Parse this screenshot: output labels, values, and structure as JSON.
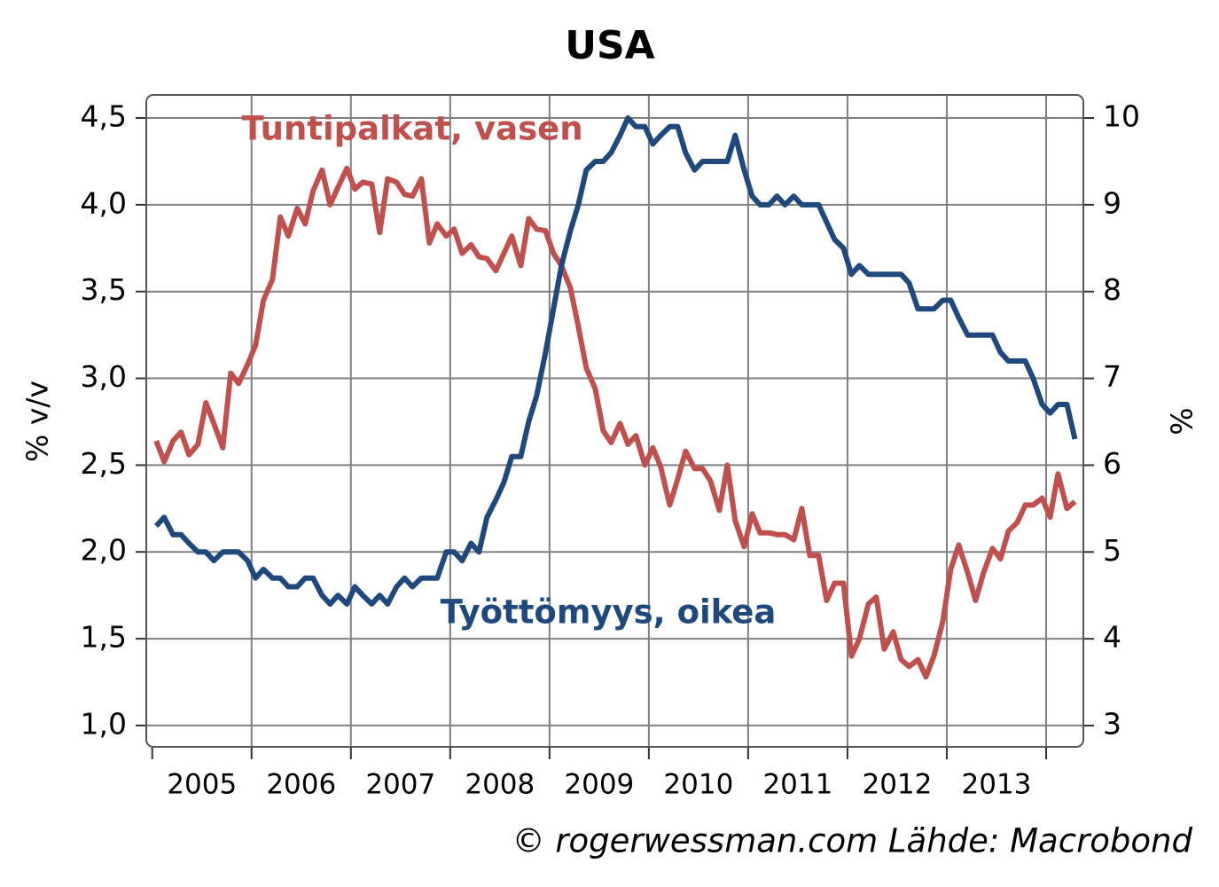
{
  "chart_data": {
    "type": "line",
    "title": "USA",
    "ylabel": "% v/v",
    "y2label": "%",
    "source": "© rogerwessman.com Lähde: Macrobond",
    "xlim": [
      2004.94,
      2014.375
    ],
    "xticks": [
      2005,
      2006,
      2007,
      2008,
      2009,
      2010,
      2011,
      2012,
      2013,
      2014
    ],
    "year_labels": [
      "2005",
      "2006",
      "2007",
      "2008",
      "2009",
      "2010",
      "2011",
      "2012",
      "2013"
    ],
    "ylim": [
      0.877,
      4.633
    ],
    "yticks": [
      {
        "value": 1.0,
        "label": "1,0"
      },
      {
        "value": 1.5,
        "label": "1,5"
      },
      {
        "value": 2.0,
        "label": "2,0"
      },
      {
        "value": 2.5,
        "label": "2,5"
      },
      {
        "value": 3.0,
        "label": "3,0"
      },
      {
        "value": 3.5,
        "label": "3,5"
      },
      {
        "value": 4.0,
        "label": "4,0"
      },
      {
        "value": 4.5,
        "label": "4,5"
      }
    ],
    "y2lim": [
      2.755,
      10.266
    ],
    "y2ticks": [
      3,
      4,
      5,
      6,
      7,
      8,
      9,
      10
    ],
    "grid": true,
    "x": [
      2005.04,
      2005.12,
      2005.21,
      2005.29,
      2005.37,
      2005.46,
      2005.54,
      2005.62,
      2005.71,
      2005.79,
      2005.87,
      2005.96,
      2006.04,
      2006.12,
      2006.21,
      2006.29,
      2006.37,
      2006.46,
      2006.54,
      2006.62,
      2006.71,
      2006.79,
      2006.87,
      2006.96,
      2007.04,
      2007.12,
      2007.21,
      2007.29,
      2007.37,
      2007.46,
      2007.54,
      2007.62,
      2007.71,
      2007.79,
      2007.87,
      2007.96,
      2008.04,
      2008.12,
      2008.21,
      2008.29,
      2008.37,
      2008.46,
      2008.54,
      2008.62,
      2008.71,
      2008.79,
      2008.87,
      2008.96,
      2009.04,
      2009.12,
      2009.21,
      2009.29,
      2009.37,
      2009.46,
      2009.54,
      2009.62,
      2009.71,
      2009.79,
      2009.87,
      2009.96,
      2010.04,
      2010.12,
      2010.21,
      2010.29,
      2010.37,
      2010.46,
      2010.54,
      2010.62,
      2010.71,
      2010.79,
      2010.87,
      2010.96,
      2011.04,
      2011.12,
      2011.21,
      2011.29,
      2011.37,
      2011.46,
      2011.54,
      2011.62,
      2011.71,
      2011.79,
      2011.87,
      2011.96,
      2012.04,
      2012.12,
      2012.21,
      2012.29,
      2012.37,
      2012.46,
      2012.54,
      2012.62,
      2012.71,
      2012.79,
      2012.87,
      2012.96,
      2013.04,
      2013.12,
      2013.21,
      2013.29,
      2013.37,
      2013.46,
      2013.54,
      2013.62,
      2013.71,
      2013.79,
      2013.87,
      2013.96,
      2014.04,
      2014.12,
      2014.21,
      2014.29
    ],
    "series": [
      {
        "name": "Tuntipalkat, vasen",
        "color": "#c0504d",
        "values": [
          2.64,
          2.52,
          2.64,
          2.69,
          2.56,
          2.62,
          2.86,
          2.74,
          2.6,
          3.03,
          2.97,
          3.08,
          3.19,
          3.45,
          3.57,
          3.93,
          3.82,
          3.98,
          3.89,
          4.08,
          4.2,
          4.0,
          4.1,
          4.21,
          4.09,
          4.13,
          4.12,
          3.84,
          4.15,
          4.13,
          4.06,
          4.05,
          4.15,
          3.78,
          3.89,
          3.82,
          3.86,
          3.72,
          3.77,
          3.7,
          3.69,
          3.62,
          3.72,
          3.82,
          3.65,
          3.92,
          3.86,
          3.85,
          3.72,
          3.65,
          3.52,
          3.3,
          3.06,
          2.94,
          2.7,
          2.63,
          2.74,
          2.62,
          2.67,
          2.5,
          2.6,
          2.49,
          2.27,
          2.42,
          2.58,
          2.48,
          2.48,
          2.41,
          2.24,
          2.5,
          2.18,
          2.03,
          2.22,
          2.11,
          2.11,
          2.1,
          2.1,
          2.07,
          2.25,
          1.98,
          1.98,
          1.72,
          1.82,
          1.82,
          1.4,
          1.5,
          1.7,
          1.74,
          1.44,
          1.54,
          1.38,
          1.34,
          1.38,
          1.28,
          1.4,
          1.6,
          1.9,
          2.04,
          1.88,
          1.72,
          1.88,
          2.02,
          1.96,
          2.12,
          2.17,
          2.27,
          2.27,
          2.31,
          2.2,
          2.45,
          2.25,
          2.29
        ]
      },
      {
        "name": "Työttömyys, oikea",
        "color": "#1f497d",
        "axis": "y2",
        "values": [
          5.3,
          5.4,
          5.2,
          5.2,
          5.1,
          5.0,
          5.0,
          4.9,
          5.0,
          5.0,
          5.0,
          4.9,
          4.7,
          4.8,
          4.7,
          4.7,
          4.6,
          4.6,
          4.7,
          4.7,
          4.5,
          4.4,
          4.5,
          4.4,
          4.6,
          4.5,
          4.4,
          4.5,
          4.4,
          4.6,
          4.7,
          4.6,
          4.7,
          4.7,
          4.7,
          5.0,
          5.0,
          4.9,
          5.1,
          5.0,
          5.4,
          5.6,
          5.8,
          6.1,
          6.1,
          6.5,
          6.8,
          7.3,
          7.8,
          8.3,
          8.7,
          9.0,
          9.4,
          9.5,
          9.5,
          9.6,
          9.8,
          10.0,
          9.9,
          9.9,
          9.7,
          9.8,
          9.9,
          9.9,
          9.6,
          9.4,
          9.5,
          9.5,
          9.5,
          9.5,
          9.8,
          9.4,
          9.1,
          9.0,
          9.0,
          9.1,
          9.0,
          9.1,
          9.0,
          9.0,
          9.0,
          8.8,
          8.6,
          8.5,
          8.2,
          8.3,
          8.2,
          8.2,
          8.2,
          8.2,
          8.2,
          8.1,
          7.8,
          7.8,
          7.8,
          7.9,
          7.9,
          7.7,
          7.5,
          7.5,
          7.5,
          7.5,
          7.3,
          7.2,
          7.2,
          7.2,
          7.0,
          6.7,
          6.6,
          6.7,
          6.7,
          6.3
        ]
      }
    ]
  }
}
